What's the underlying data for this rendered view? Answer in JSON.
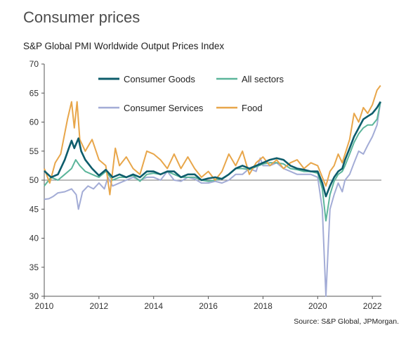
{
  "title": "Consumer prices",
  "source": "Source: S&P Global, JPMorgan.",
  "chart_data": {
    "type": "line",
    "title": "S&P Global PMI Worldwide Output Prices Index",
    "xlabel": "",
    "ylabel": "",
    "xlim": [
      2010.0,
      2022.33
    ],
    "ylim": [
      30,
      70
    ],
    "reference_line": 50,
    "x_ticks": [
      "2010",
      "2012",
      "2014",
      "2016",
      "2018",
      "2020",
      "2022"
    ],
    "y_ticks": [
      "30",
      "35",
      "40",
      "45",
      "50",
      "55",
      "60",
      "65",
      "70"
    ],
    "legend_position": "top-center",
    "series": [
      {
        "name": "Consumer Goods",
        "color": "#0d5c6b",
        "points": [
          [
            2010.0,
            51.6
          ],
          [
            2010.25,
            50.5
          ],
          [
            2010.5,
            51.0
          ],
          [
            2010.75,
            53.5
          ],
          [
            2010.9,
            55.5
          ],
          [
            2011.0,
            56.8
          ],
          [
            2011.1,
            55.5
          ],
          [
            2011.25,
            57.2
          ],
          [
            2011.35,
            55.0
          ],
          [
            2011.5,
            53.5
          ],
          [
            2011.75,
            52.0
          ],
          [
            2012.0,
            50.8
          ],
          [
            2012.25,
            51.8
          ],
          [
            2012.5,
            50.5
          ],
          [
            2012.75,
            51.0
          ],
          [
            2013.0,
            50.5
          ],
          [
            2013.25,
            51.0
          ],
          [
            2013.5,
            50.5
          ],
          [
            2013.75,
            51.5
          ],
          [
            2014.0,
            51.5
          ],
          [
            2014.25,
            51.0
          ],
          [
            2014.5,
            51.5
          ],
          [
            2014.75,
            51.5
          ],
          [
            2015.0,
            50.5
          ],
          [
            2015.25,
            51.0
          ],
          [
            2015.5,
            51.0
          ],
          [
            2015.75,
            50.0
          ],
          [
            2016.0,
            50.3
          ],
          [
            2016.25,
            50.5
          ],
          [
            2016.5,
            50.2
          ],
          [
            2016.75,
            51.0
          ],
          [
            2017.0,
            52.0
          ],
          [
            2017.25,
            52.5
          ],
          [
            2017.5,
            52.0
          ],
          [
            2017.75,
            52.5
          ],
          [
            2018.0,
            53.0
          ],
          [
            2018.25,
            53.5
          ],
          [
            2018.5,
            53.8
          ],
          [
            2018.75,
            53.5
          ],
          [
            2019.0,
            52.5
          ],
          [
            2019.25,
            52.0
          ],
          [
            2019.5,
            51.8
          ],
          [
            2019.75,
            51.5
          ],
          [
            2020.0,
            51.5
          ],
          [
            2020.17,
            49.5
          ],
          [
            2020.3,
            47.2
          ],
          [
            2020.45,
            49.0
          ],
          [
            2020.6,
            50.5
          ],
          [
            2020.75,
            51.5
          ],
          [
            2020.9,
            52.0
          ],
          [
            2021.0,
            53.5
          ],
          [
            2021.17,
            55.5
          ],
          [
            2021.33,
            57.5
          ],
          [
            2021.5,
            59.0
          ],
          [
            2021.67,
            60.5
          ],
          [
            2021.83,
            61.0
          ],
          [
            2022.0,
            61.5
          ],
          [
            2022.17,
            62.5
          ],
          [
            2022.3,
            63.5
          ]
        ]
      },
      {
        "name": "All sectors",
        "color": "#5bb59a",
        "points": [
          [
            2010.0,
            49.0
          ],
          [
            2010.25,
            50.5
          ],
          [
            2010.5,
            50.0
          ],
          [
            2010.75,
            51.0
          ],
          [
            2011.0,
            52.0
          ],
          [
            2011.15,
            53.5
          ],
          [
            2011.3,
            52.5
          ],
          [
            2011.5,
            51.5
          ],
          [
            2011.75,
            51.0
          ],
          [
            2012.0,
            50.5
          ],
          [
            2012.25,
            51.5
          ],
          [
            2012.5,
            50.0
          ],
          [
            2012.75,
            50.5
          ],
          [
            2013.0,
            50.5
          ],
          [
            2013.25,
            50.8
          ],
          [
            2013.5,
            49.8
          ],
          [
            2013.75,
            51.0
          ],
          [
            2014.0,
            51.2
          ],
          [
            2014.25,
            51.0
          ],
          [
            2014.5,
            51.5
          ],
          [
            2014.75,
            51.0
          ],
          [
            2015.0,
            50.5
          ],
          [
            2015.25,
            50.5
          ],
          [
            2015.5,
            50.5
          ],
          [
            2015.75,
            50.0
          ],
          [
            2016.0,
            49.8
          ],
          [
            2016.25,
            50.0
          ],
          [
            2016.5,
            50.3
          ],
          [
            2016.75,
            51.0
          ],
          [
            2017.0,
            52.0
          ],
          [
            2017.25,
            52.0
          ],
          [
            2017.5,
            51.8
          ],
          [
            2017.75,
            52.3
          ],
          [
            2018.0,
            52.8
          ],
          [
            2018.25,
            53.0
          ],
          [
            2018.5,
            53.0
          ],
          [
            2018.75,
            52.8
          ],
          [
            2019.0,
            52.0
          ],
          [
            2019.25,
            51.8
          ],
          [
            2019.5,
            51.5
          ],
          [
            2019.75,
            51.5
          ],
          [
            2020.0,
            51.2
          ],
          [
            2020.17,
            48.5
          ],
          [
            2020.3,
            43.0
          ],
          [
            2020.45,
            47.5
          ],
          [
            2020.6,
            49.8
          ],
          [
            2020.75,
            51.0
          ],
          [
            2020.9,
            51.5
          ],
          [
            2021.0,
            52.5
          ],
          [
            2021.17,
            54.5
          ],
          [
            2021.33,
            56.5
          ],
          [
            2021.5,
            58.0
          ],
          [
            2021.67,
            59.0
          ],
          [
            2021.83,
            59.5
          ],
          [
            2022.0,
            59.5
          ],
          [
            2022.17,
            60.5
          ],
          [
            2022.3,
            63.5
          ]
        ]
      },
      {
        "name": "Consumer Services",
        "color": "#a3acd6",
        "points": [
          [
            2010.0,
            46.7
          ],
          [
            2010.17,
            46.8
          ],
          [
            2010.33,
            47.2
          ],
          [
            2010.5,
            47.8
          ],
          [
            2010.75,
            48.0
          ],
          [
            2011.0,
            48.5
          ],
          [
            2011.17,
            47.5
          ],
          [
            2011.25,
            45.0
          ],
          [
            2011.4,
            48.0
          ],
          [
            2011.6,
            49.0
          ],
          [
            2011.8,
            48.5
          ],
          [
            2012.0,
            49.5
          ],
          [
            2012.2,
            48.5
          ],
          [
            2012.33,
            50.5
          ],
          [
            2012.5,
            49.0
          ],
          [
            2012.75,
            49.5
          ],
          [
            2013.0,
            50.0
          ],
          [
            2013.25,
            50.5
          ],
          [
            2013.5,
            50.0
          ],
          [
            2013.75,
            50.5
          ],
          [
            2014.0,
            50.5
          ],
          [
            2014.25,
            50.0
          ],
          [
            2014.5,
            51.5
          ],
          [
            2014.75,
            50.0
          ],
          [
            2015.0,
            49.8
          ],
          [
            2015.25,
            50.5
          ],
          [
            2015.5,
            50.2
          ],
          [
            2015.75,
            49.5
          ],
          [
            2016.0,
            49.5
          ],
          [
            2016.25,
            49.8
          ],
          [
            2016.5,
            49.5
          ],
          [
            2016.75,
            50.0
          ],
          [
            2017.0,
            51.0
          ],
          [
            2017.25,
            51.0
          ],
          [
            2017.5,
            52.0
          ],
          [
            2017.75,
            51.5
          ],
          [
            2017.9,
            53.8
          ],
          [
            2018.0,
            52.5
          ],
          [
            2018.25,
            52.5
          ],
          [
            2018.5,
            53.0
          ],
          [
            2018.75,
            52.0
          ],
          [
            2019.0,
            51.5
          ],
          [
            2019.25,
            51.0
          ],
          [
            2019.5,
            51.0
          ],
          [
            2019.75,
            51.0
          ],
          [
            2020.0,
            50.5
          ],
          [
            2020.17,
            45.0
          ],
          [
            2020.3,
            30.0
          ],
          [
            2020.45,
            45.0
          ],
          [
            2020.6,
            47.5
          ],
          [
            2020.75,
            49.5
          ],
          [
            2020.9,
            48.0
          ],
          [
            2021.0,
            50.0
          ],
          [
            2021.17,
            51.0
          ],
          [
            2021.33,
            53.0
          ],
          [
            2021.5,
            55.0
          ],
          [
            2021.67,
            54.5
          ],
          [
            2021.83,
            56.0
          ],
          [
            2022.0,
            57.5
          ],
          [
            2022.17,
            59.5
          ],
          [
            2022.3,
            63.5
          ]
        ]
      },
      {
        "name": "Food",
        "color": "#e8a64a",
        "points": [
          [
            2010.0,
            52.0
          ],
          [
            2010.2,
            49.5
          ],
          [
            2010.4,
            53.0
          ],
          [
            2010.6,
            54.5
          ],
          [
            2010.85,
            60.5
          ],
          [
            2011.0,
            63.5
          ],
          [
            2011.1,
            59.0
          ],
          [
            2011.2,
            63.5
          ],
          [
            2011.3,
            57.0
          ],
          [
            2011.5,
            55.0
          ],
          [
            2011.75,
            57.0
          ],
          [
            2012.0,
            53.5
          ],
          [
            2012.25,
            52.5
          ],
          [
            2012.4,
            47.5
          ],
          [
            2012.6,
            55.5
          ],
          [
            2012.75,
            52.5
          ],
          [
            2013.0,
            54.0
          ],
          [
            2013.25,
            52.0
          ],
          [
            2013.5,
            51.0
          ],
          [
            2013.75,
            55.0
          ],
          [
            2014.0,
            54.5
          ],
          [
            2014.25,
            53.5
          ],
          [
            2014.5,
            52.0
          ],
          [
            2014.75,
            54.5
          ],
          [
            2015.0,
            52.0
          ],
          [
            2015.25,
            54.0
          ],
          [
            2015.5,
            52.0
          ],
          [
            2015.75,
            50.5
          ],
          [
            2016.0,
            51.5
          ],
          [
            2016.25,
            50.0
          ],
          [
            2016.5,
            51.5
          ],
          [
            2016.75,
            54.5
          ],
          [
            2017.0,
            52.5
          ],
          [
            2017.25,
            55.0
          ],
          [
            2017.5,
            51.0
          ],
          [
            2017.75,
            53.0
          ],
          [
            2018.0,
            54.0
          ],
          [
            2018.25,
            52.5
          ],
          [
            2018.5,
            53.5
          ],
          [
            2018.75,
            52.0
          ],
          [
            2019.0,
            53.0
          ],
          [
            2019.25,
            53.5
          ],
          [
            2019.5,
            52.0
          ],
          [
            2019.75,
            53.0
          ],
          [
            2020.0,
            52.5
          ],
          [
            2020.17,
            50.5
          ],
          [
            2020.3,
            49.0
          ],
          [
            2020.45,
            51.5
          ],
          [
            2020.6,
            52.5
          ],
          [
            2020.75,
            54.5
          ],
          [
            2020.9,
            53.0
          ],
          [
            2021.0,
            54.5
          ],
          [
            2021.17,
            57.0
          ],
          [
            2021.33,
            61.5
          ],
          [
            2021.5,
            60.0
          ],
          [
            2021.67,
            62.5
          ],
          [
            2021.83,
            61.5
          ],
          [
            2022.0,
            63.0
          ],
          [
            2022.17,
            65.5
          ],
          [
            2022.3,
            66.3
          ]
        ]
      }
    ]
  }
}
